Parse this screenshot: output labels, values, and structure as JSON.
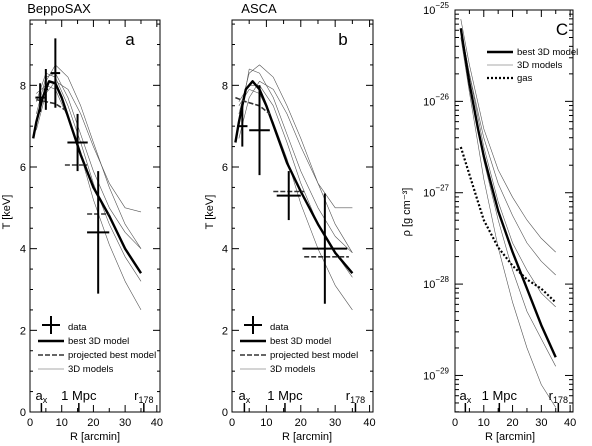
{
  "chart_data": [
    {
      "id": "a",
      "type": "line",
      "title": "BeppoSAX",
      "panel_label": "a",
      "xlabel": "R [arcmin]",
      "ylabel": "T [keV]",
      "xlim": [
        0,
        41
      ],
      "ylim": [
        0,
        9.6
      ],
      "yscale": "linear",
      "x_ticks": [
        "0",
        "10",
        "20",
        "30",
        "40"
      ],
      "y_ticks": [
        "0",
        "2",
        "4",
        "6",
        "8"
      ],
      "annotations": {
        "ax_base": "a",
        "ax_sub": "x",
        "mpc": "1 Mpc",
        "r178_base": "r",
        "r178_sub": "178"
      },
      "annotation_x": {
        "ax": 3.6,
        "mpc": 15.4,
        "r178": 35.9
      },
      "legend": [
        {
          "label": "data",
          "style": "cross"
        },
        {
          "label": "best 3D model",
          "style": "thick"
        },
        {
          "label": "projected best model",
          "style": "dashthick"
        },
        {
          "label": "3D models",
          "style": "thin"
        }
      ],
      "data_points": [
        {
          "x": 3.2,
          "y": 7.7,
          "xerr": 1.5,
          "yerr": 0.35
        },
        {
          "x": 5.0,
          "y": 7.9,
          "xerr": 0.7,
          "yerr": 0.5
        },
        {
          "x": 8.0,
          "y": 8.3,
          "xerr": 1.5,
          "yerr": 0.85
        },
        {
          "x": 15.0,
          "y": 6.6,
          "xerr": 3.2,
          "yerr": 0.7
        },
        {
          "x": 21.5,
          "y": 4.4,
          "xerr": 3.5,
          "yerr": 1.5
        }
      ],
      "best_3d": {
        "x": [
          1,
          2,
          4,
          6,
          8,
          10,
          13,
          16,
          20,
          25,
          30,
          35
        ],
        "y": [
          6.7,
          7.1,
          7.7,
          8.1,
          8.05,
          7.7,
          7.0,
          6.3,
          5.5,
          4.8,
          4.0,
          3.4
        ]
      },
      "projected": [
        {
          "x": [
            2,
            5,
            8,
            11
          ],
          "y": [
            7.65,
            7.6,
            7.55,
            7.4
          ]
        },
        {
          "x": [
            11,
            18
          ],
          "y": [
            6.05,
            6.05
          ]
        },
        {
          "x": [
            18,
            25
          ],
          "y": [
            4.85,
            4.85
          ]
        }
      ],
      "models_3d": [
        {
          "x": [
            2,
            5,
            8,
            12,
            16,
            20,
            25,
            30,
            35
          ],
          "y": [
            7.3,
            8.2,
            8.3,
            7.7,
            6.8,
            5.9,
            5.0,
            4.4,
            4.0
          ]
        },
        {
          "x": [
            2,
            5,
            8,
            12,
            16,
            20,
            25,
            30,
            35
          ],
          "y": [
            7.0,
            8.1,
            8.5,
            8.2,
            7.5,
            6.6,
            5.5,
            4.6,
            4.0
          ]
        },
        {
          "x": [
            2,
            5,
            8,
            12,
            16,
            20,
            25,
            30,
            35
          ],
          "y": [
            7.6,
            8.3,
            8.2,
            7.5,
            6.6,
            5.6,
            4.6,
            3.8,
            3.2
          ]
        },
        {
          "x": [
            2,
            5,
            8,
            12,
            16,
            20,
            25,
            30,
            35
          ],
          "y": [
            7.8,
            8.0,
            7.9,
            7.2,
            6.3,
            5.2,
            4.1,
            3.2,
            2.5
          ]
        },
        {
          "x": [
            2,
            5,
            8,
            12,
            16,
            20,
            25,
            30,
            35
          ],
          "y": [
            6.9,
            7.8,
            8.1,
            7.9,
            7.3,
            6.5,
            5.6,
            5.0,
            4.9
          ]
        }
      ]
    },
    {
      "id": "b",
      "type": "line",
      "title": "ASCA",
      "panel_label": "b",
      "xlabel": "R [arcmin]",
      "ylabel": "T [keV]",
      "xlim": [
        0,
        41
      ],
      "ylim": [
        0,
        9.6
      ],
      "yscale": "linear",
      "x_ticks": [
        "0",
        "10",
        "20",
        "30",
        "40"
      ],
      "y_ticks": [
        "0",
        "2",
        "4",
        "6",
        "8"
      ],
      "annotations": {
        "ax_base": "a",
        "ax_sub": "x",
        "mpc": "1 Mpc",
        "r178_base": "r",
        "r178_sub": "178"
      },
      "annotation_x": {
        "ax": 3.6,
        "mpc": 15.4,
        "r178": 35.9
      },
      "legend": [
        {
          "label": "data",
          "style": "cross"
        },
        {
          "label": "best 3D model",
          "style": "thick"
        },
        {
          "label": "projected best model",
          "style": "dashthick"
        },
        {
          "label": "3D models",
          "style": "thin"
        }
      ],
      "data_points": [
        {
          "x": 3.0,
          "y": 7.0,
          "xerr": 1.5,
          "yerr": 0.5
        },
        {
          "x": 8.0,
          "y": 6.9,
          "xerr": 3.0,
          "yerr": 1.1
        },
        {
          "x": 16.5,
          "y": 5.3,
          "xerr": 3.5,
          "yerr": 0.6
        },
        {
          "x": 27.0,
          "y": 4.0,
          "xerr": 6.5,
          "yerr": 1.35
        }
      ],
      "best_3d": {
        "x": [
          1,
          2,
          3,
          4,
          6,
          8,
          10,
          13,
          16,
          20,
          25,
          30,
          35
        ],
        "y": [
          6.6,
          7.1,
          7.5,
          7.9,
          8.1,
          7.9,
          7.5,
          6.8,
          6.1,
          5.4,
          4.6,
          3.9,
          3.4
        ]
      },
      "projected": [
        {
          "x": [
            1,
            4,
            8,
            11
          ],
          "y": [
            7.7,
            7.6,
            7.5,
            7.3
          ]
        },
        {
          "x": [
            12,
            21
          ],
          "y": [
            5.4,
            5.4
          ]
        },
        {
          "x": [
            21,
            34
          ],
          "y": [
            3.8,
            3.8
          ]
        }
      ],
      "models_3d": [
        {
          "x": [
            2,
            5,
            8,
            12,
            16,
            20,
            25,
            30,
            35
          ],
          "y": [
            7.0,
            8.4,
            8.3,
            7.7,
            6.8,
            5.9,
            5.0,
            4.3,
            3.9
          ]
        },
        {
          "x": [
            2,
            5,
            8,
            12,
            16,
            20,
            25,
            30,
            35
          ],
          "y": [
            7.3,
            8.3,
            8.5,
            8.2,
            7.5,
            6.7,
            5.6,
            4.6,
            3.9
          ]
        },
        {
          "x": [
            2,
            5,
            8,
            12,
            16,
            20,
            25,
            30,
            35
          ],
          "y": [
            7.6,
            8.0,
            8.0,
            7.5,
            6.6,
            5.6,
            4.6,
            3.9,
            3.3
          ]
        },
        {
          "x": [
            2,
            5,
            8,
            12,
            16,
            20,
            25,
            30,
            35
          ],
          "y": [
            7.5,
            7.9,
            7.8,
            7.1,
            6.2,
            5.1,
            4.0,
            3.1,
            2.5
          ]
        },
        {
          "x": [
            2,
            5,
            8,
            12,
            16,
            20,
            25,
            30,
            35
          ],
          "y": [
            6.7,
            7.7,
            8.1,
            7.9,
            7.3,
            6.5,
            5.6,
            5.0,
            5.0
          ]
        }
      ]
    },
    {
      "id": "c",
      "type": "line",
      "panel_label": "C",
      "xlabel": "R [arcmin]",
      "ylabel": "ρ [g cm⁻³]",
      "xlim": [
        0,
        41
      ],
      "ylim_exp": [
        -29.4,
        -25
      ],
      "yscale": "log",
      "x_ticks": [
        "0",
        "10",
        "20",
        "30",
        "40"
      ],
      "y_tick_exps": [
        -29,
        -28,
        -27,
        -26,
        -25
      ],
      "annotations": {
        "ax_base": "a",
        "ax_sub": "x",
        "mpc": "1 Mpc",
        "r178_base": "r",
        "r178_sub": "178"
      },
      "annotation_x": {
        "ax": 3.6,
        "mpc": 15.4,
        "r178": 35.9
      },
      "legend": [
        {
          "label": "best 3D model",
          "style": "thick"
        },
        {
          "label": "3D models",
          "style": "thin"
        },
        {
          "label": "gas",
          "style": "dotted"
        }
      ],
      "best_3d_log": {
        "x": [
          2,
          3,
          5,
          8,
          10,
          15,
          20,
          25,
          30,
          35
        ],
        "y": [
          -25.2,
          -25.4,
          -25.8,
          -26.3,
          -26.6,
          -27.2,
          -27.65,
          -28.05,
          -28.45,
          -28.8
        ]
      },
      "gas_log": {
        "x": [
          2,
          5,
          8,
          10,
          15,
          20,
          25,
          30,
          35
        ],
        "y": [
          -26.5,
          -26.8,
          -27.1,
          -27.3,
          -27.6,
          -27.8,
          -27.95,
          -28.05,
          -28.2
        ]
      },
      "models_3d_log": [
        {
          "x": [
            2,
            5,
            10,
            15,
            20,
            25,
            30,
            35
          ],
          "y": [
            -25.1,
            -25.6,
            -26.3,
            -26.75,
            -27.05,
            -27.3,
            -27.5,
            -27.65
          ]
        },
        {
          "x": [
            2,
            5,
            10,
            15,
            20,
            25,
            30,
            35
          ],
          "y": [
            -25.2,
            -25.7,
            -26.4,
            -26.9,
            -27.25,
            -27.55,
            -27.75,
            -27.9
          ]
        },
        {
          "x": [
            2,
            5,
            10,
            15,
            20,
            25,
            30,
            35
          ],
          "y": [
            -25.2,
            -25.7,
            -26.5,
            -27.1,
            -27.55,
            -27.85,
            -28.1,
            -28.25
          ]
        },
        {
          "x": [
            2,
            5,
            10,
            15,
            20,
            25,
            30,
            35
          ],
          "y": [
            -25.25,
            -25.8,
            -26.65,
            -27.3,
            -27.85,
            -28.3,
            -28.6,
            -28.9
          ]
        },
        {
          "x": [
            2,
            5,
            10,
            15,
            20,
            25,
            30,
            35
          ],
          "y": [
            -25.3,
            -25.9,
            -26.85,
            -27.6,
            -28.2,
            -28.7,
            -29.1,
            -29.35
          ]
        }
      ]
    }
  ]
}
